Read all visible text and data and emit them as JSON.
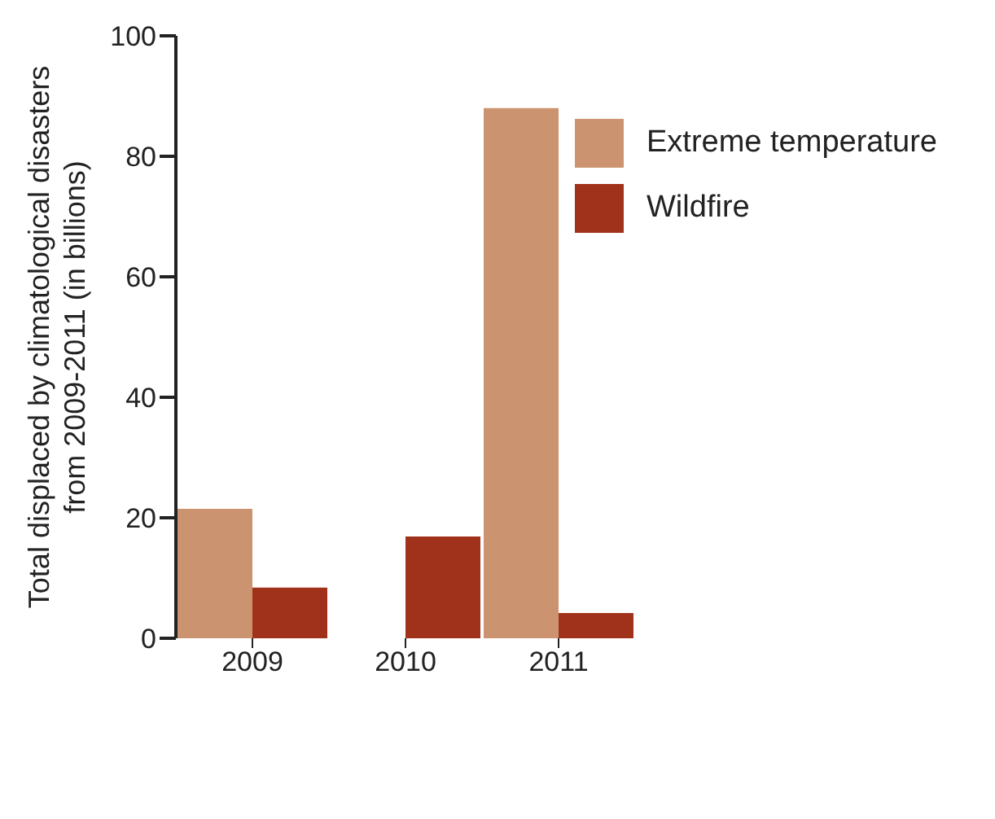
{
  "chart_data": {
    "type": "bar",
    "ylabel": "Total displaced by climatological disasters from 2009-2011 (in billions)",
    "categories": [
      "2009",
      "2010",
      "2011"
    ],
    "series": [
      {
        "name": "Extreme temperature",
        "color": "#cc9370",
        "values": [
          21.5,
          null,
          88
        ]
      },
      {
        "name": "Wildfire",
        "color": "#a0311b",
        "values": [
          8.4,
          16.9,
          4.2
        ]
      }
    ],
    "ylim": [
      0,
      100
    ],
    "yticks": [
      0,
      20,
      40,
      60,
      80,
      100
    ],
    "grid": false,
    "legend": "top right"
  }
}
